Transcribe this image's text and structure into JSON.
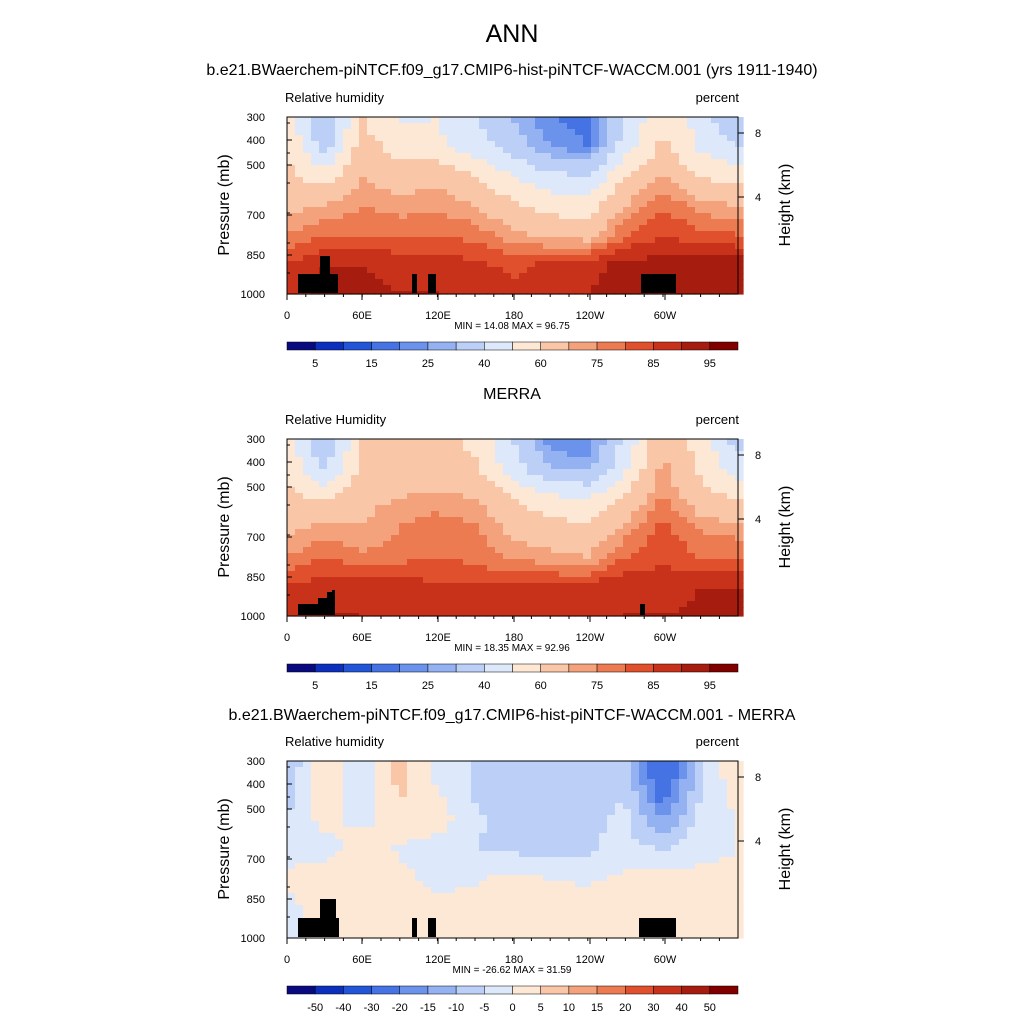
{
  "figure": {
    "title": "ANN"
  },
  "chart_data": [
    {
      "type": "heatmap",
      "title": "b.e21.BWaerchem-piNTCF.f09_g17.CMIP6-hist-piNTCF-WACCM.001 (yrs 1911-1940)",
      "left_label": "Relative humidity",
      "right_label": "percent",
      "ylabel": "Pressure (mb)",
      "y2label": "Height (km)",
      "yticks": [
        "300",
        "400",
        "500",
        "700",
        "850",
        "1000"
      ],
      "yticks_values": [
        300,
        400,
        500,
        700,
        850,
        1000
      ],
      "y2ticks": [
        "8",
        "4"
      ],
      "xticks": [
        "0",
        "60E",
        "120E",
        "180",
        "120W",
        "60W"
      ],
      "stats": "MIN =  14.08  MAX =  96.75",
      "min": 14.08,
      "max": 96.75,
      "colorbar_labels": [
        "5",
        "15",
        "25",
        "40",
        "60",
        "75",
        "85",
        "95"
      ],
      "colorbar_colors": [
        "#0a0a80",
        "#0d2fbd",
        "#2355d8",
        "#4573e4",
        "#6c93ec",
        "#94b2f2",
        "#bcd0f7",
        "#dde8fb",
        "#fde7d5",
        "#fac6a8",
        "#f4a27c",
        "#ec7b52",
        "#e1502c",
        "#c8321a",
        "#a61d10",
        "#800000"
      ]
    },
    {
      "type": "heatmap",
      "title": "MERRA",
      "left_label": "Relative Humidity",
      "right_label": "percent",
      "ylabel": "Pressure (mb)",
      "y2label": "Height (km)",
      "yticks": [
        "300",
        "400",
        "500",
        "700",
        "850",
        "1000"
      ],
      "yticks_values": [
        300,
        400,
        500,
        700,
        850,
        1000
      ],
      "y2ticks": [
        "8",
        "4"
      ],
      "xticks": [
        "0",
        "60E",
        "120E",
        "180",
        "120W",
        "60W"
      ],
      "stats": "MIN =  18.35  MAX =  92.96",
      "min": 18.35,
      "max": 92.96,
      "colorbar_labels": [
        "5",
        "15",
        "25",
        "40",
        "60",
        "75",
        "85",
        "95"
      ],
      "colorbar_colors": [
        "#0a0a80",
        "#0d2fbd",
        "#2355d8",
        "#4573e4",
        "#6c93ec",
        "#94b2f2",
        "#bcd0f7",
        "#dde8fb",
        "#fde7d5",
        "#fac6a8",
        "#f4a27c",
        "#ec7b52",
        "#e1502c",
        "#c8321a",
        "#a61d10",
        "#800000"
      ]
    },
    {
      "type": "heatmap",
      "title": "b.e21.BWaerchem-piNTCF.f09_g17.CMIP6-hist-piNTCF-WACCM.001 - MERRA",
      "left_label": "Relative humidity",
      "right_label": "percent",
      "ylabel": "Pressure (mb)",
      "y2label": "Height (km)",
      "yticks": [
        "300",
        "400",
        "500",
        "700",
        "850",
        "1000"
      ],
      "yticks_values": [
        300,
        400,
        500,
        700,
        850,
        1000
      ],
      "y2ticks": [
        "8",
        "4"
      ],
      "xticks": [
        "0",
        "60E",
        "120E",
        "180",
        "120W",
        "60W"
      ],
      "stats": "MIN = -26.62  MAX =  31.59",
      "min": -26.62,
      "max": 31.59,
      "colorbar_labels": [
        "-50",
        "-40",
        "-30",
        "-20",
        "-15",
        "-10",
        "-5",
        "0",
        "5",
        "10",
        "15",
        "20",
        "30",
        "40",
        "50"
      ],
      "colorbar_colors": [
        "#0a0a80",
        "#0d2fbd",
        "#2355d8",
        "#4573e4",
        "#6c93ec",
        "#94b2f2",
        "#bcd0f7",
        "#dde8fb",
        "#fde7d5",
        "#fac6a8",
        "#f4a27c",
        "#ec7b52",
        "#e1502c",
        "#c8321a",
        "#a61d10",
        "#800000"
      ]
    }
  ]
}
